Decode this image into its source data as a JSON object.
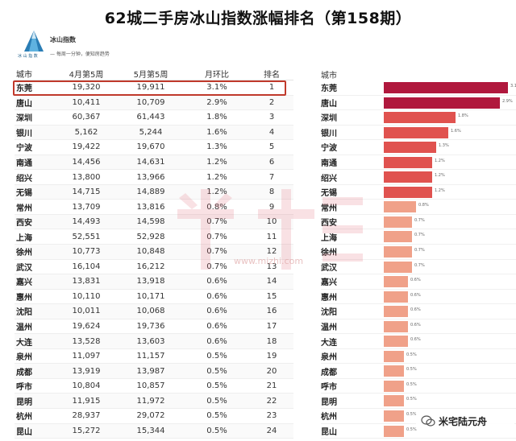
{
  "title": "62城二手房冰山指数涨幅排名（第158期）",
  "brand": "冰山指数",
  "logo_caption": "冰 山 指 数",
  "slogan": "— 每周一分钟，便知房趋势",
  "watermark_text": "www.mizhi.com",
  "badge_text": "米宅陆元舟",
  "colors": {
    "highlight": "#c0392b",
    "bar_dark": "#b0183d",
    "bar_mid": "#e0524f",
    "bar_light": "#f0a189"
  },
  "chart_data": {
    "type": "table",
    "columns": [
      "城市",
      "4月第5周",
      "5月第5周",
      "月环比",
      "排名"
    ],
    "rows": [
      [
        "东莞",
        "19,320",
        "19,911",
        "3.1%",
        "1"
      ],
      [
        "唐山",
        "10,411",
        "10,709",
        "2.9%",
        "2"
      ],
      [
        "深圳",
        "60,367",
        "61,443",
        "1.8%",
        "3"
      ],
      [
        "银川",
        "5,162",
        "5,244",
        "1.6%",
        "4"
      ],
      [
        "宁波",
        "19,422",
        "19,670",
        "1.3%",
        "5"
      ],
      [
        "南通",
        "14,456",
        "14,631",
        "1.2%",
        "6"
      ],
      [
        "绍兴",
        "13,800",
        "13,966",
        "1.2%",
        "7"
      ],
      [
        "无锡",
        "14,715",
        "14,889",
        "1.2%",
        "8"
      ],
      [
        "常州",
        "13,709",
        "13,816",
        "0.8%",
        "9"
      ],
      [
        "西安",
        "14,493",
        "14,598",
        "0.7%",
        "10"
      ],
      [
        "上海",
        "52,551",
        "52,928",
        "0.7%",
        "11"
      ],
      [
        "徐州",
        "10,773",
        "10,848",
        "0.7%",
        "12"
      ],
      [
        "武汉",
        "16,104",
        "16,212",
        "0.7%",
        "13"
      ],
      [
        "嘉兴",
        "13,831",
        "13,918",
        "0.6%",
        "14"
      ],
      [
        "惠州",
        "10,110",
        "10,171",
        "0.6%",
        "15"
      ],
      [
        "沈阳",
        "10,011",
        "10,068",
        "0.6%",
        "16"
      ],
      [
        "温州",
        "19,624",
        "19,736",
        "0.6%",
        "17"
      ],
      [
        "大连",
        "13,528",
        "13,603",
        "0.6%",
        "18"
      ],
      [
        "泉州",
        "11,097",
        "11,157",
        "0.5%",
        "19"
      ],
      [
        "成都",
        "13,919",
        "13,987",
        "0.5%",
        "20"
      ],
      [
        "呼市",
        "10,804",
        "10,857",
        "0.5%",
        "21"
      ],
      [
        "昆明",
        "11,915",
        "11,972",
        "0.5%",
        "22"
      ],
      [
        "杭州",
        "28,937",
        "29,072",
        "0.5%",
        "23"
      ],
      [
        "昆山",
        "15,272",
        "15,344",
        "0.5%",
        "24"
      ]
    ],
    "bar_chart": {
      "type": "bar",
      "orientation": "horizontal",
      "category_label": "城市",
      "categories": [
        "东莞",
        "唐山",
        "深圳",
        "银川",
        "宁波",
        "南通",
        "绍兴",
        "无锡",
        "常州",
        "西安",
        "上海",
        "徐州",
        "武汉",
        "嘉兴",
        "惠州",
        "沈阳",
        "温州",
        "大连",
        "泉州",
        "成都",
        "呼市",
        "昆明",
        "杭州",
        "昆山"
      ],
      "values": [
        3.1,
        2.9,
        1.8,
        1.6,
        1.3,
        1.2,
        1.2,
        1.2,
        0.8,
        0.7,
        0.7,
        0.7,
        0.7,
        0.6,
        0.6,
        0.6,
        0.6,
        0.6,
        0.5,
        0.5,
        0.5,
        0.5,
        0.5,
        0.5
      ],
      "value_labels": [
        "3.1%",
        "2.9%",
        "1.8%",
        "1.6%",
        "1.3%",
        "1.2%",
        "1.2%",
        "1.2%",
        "0.8%",
        "0.7%",
        "0.7%",
        "0.7%",
        "0.7%",
        "0.6%",
        "0.6%",
        "0.6%",
        "0.6%",
        "0.6%",
        "0.5%",
        "0.5%",
        "0.5%",
        "0.5%",
        "0.5%",
        "0.5%"
      ],
      "xlim": [
        0,
        3.3
      ]
    }
  }
}
